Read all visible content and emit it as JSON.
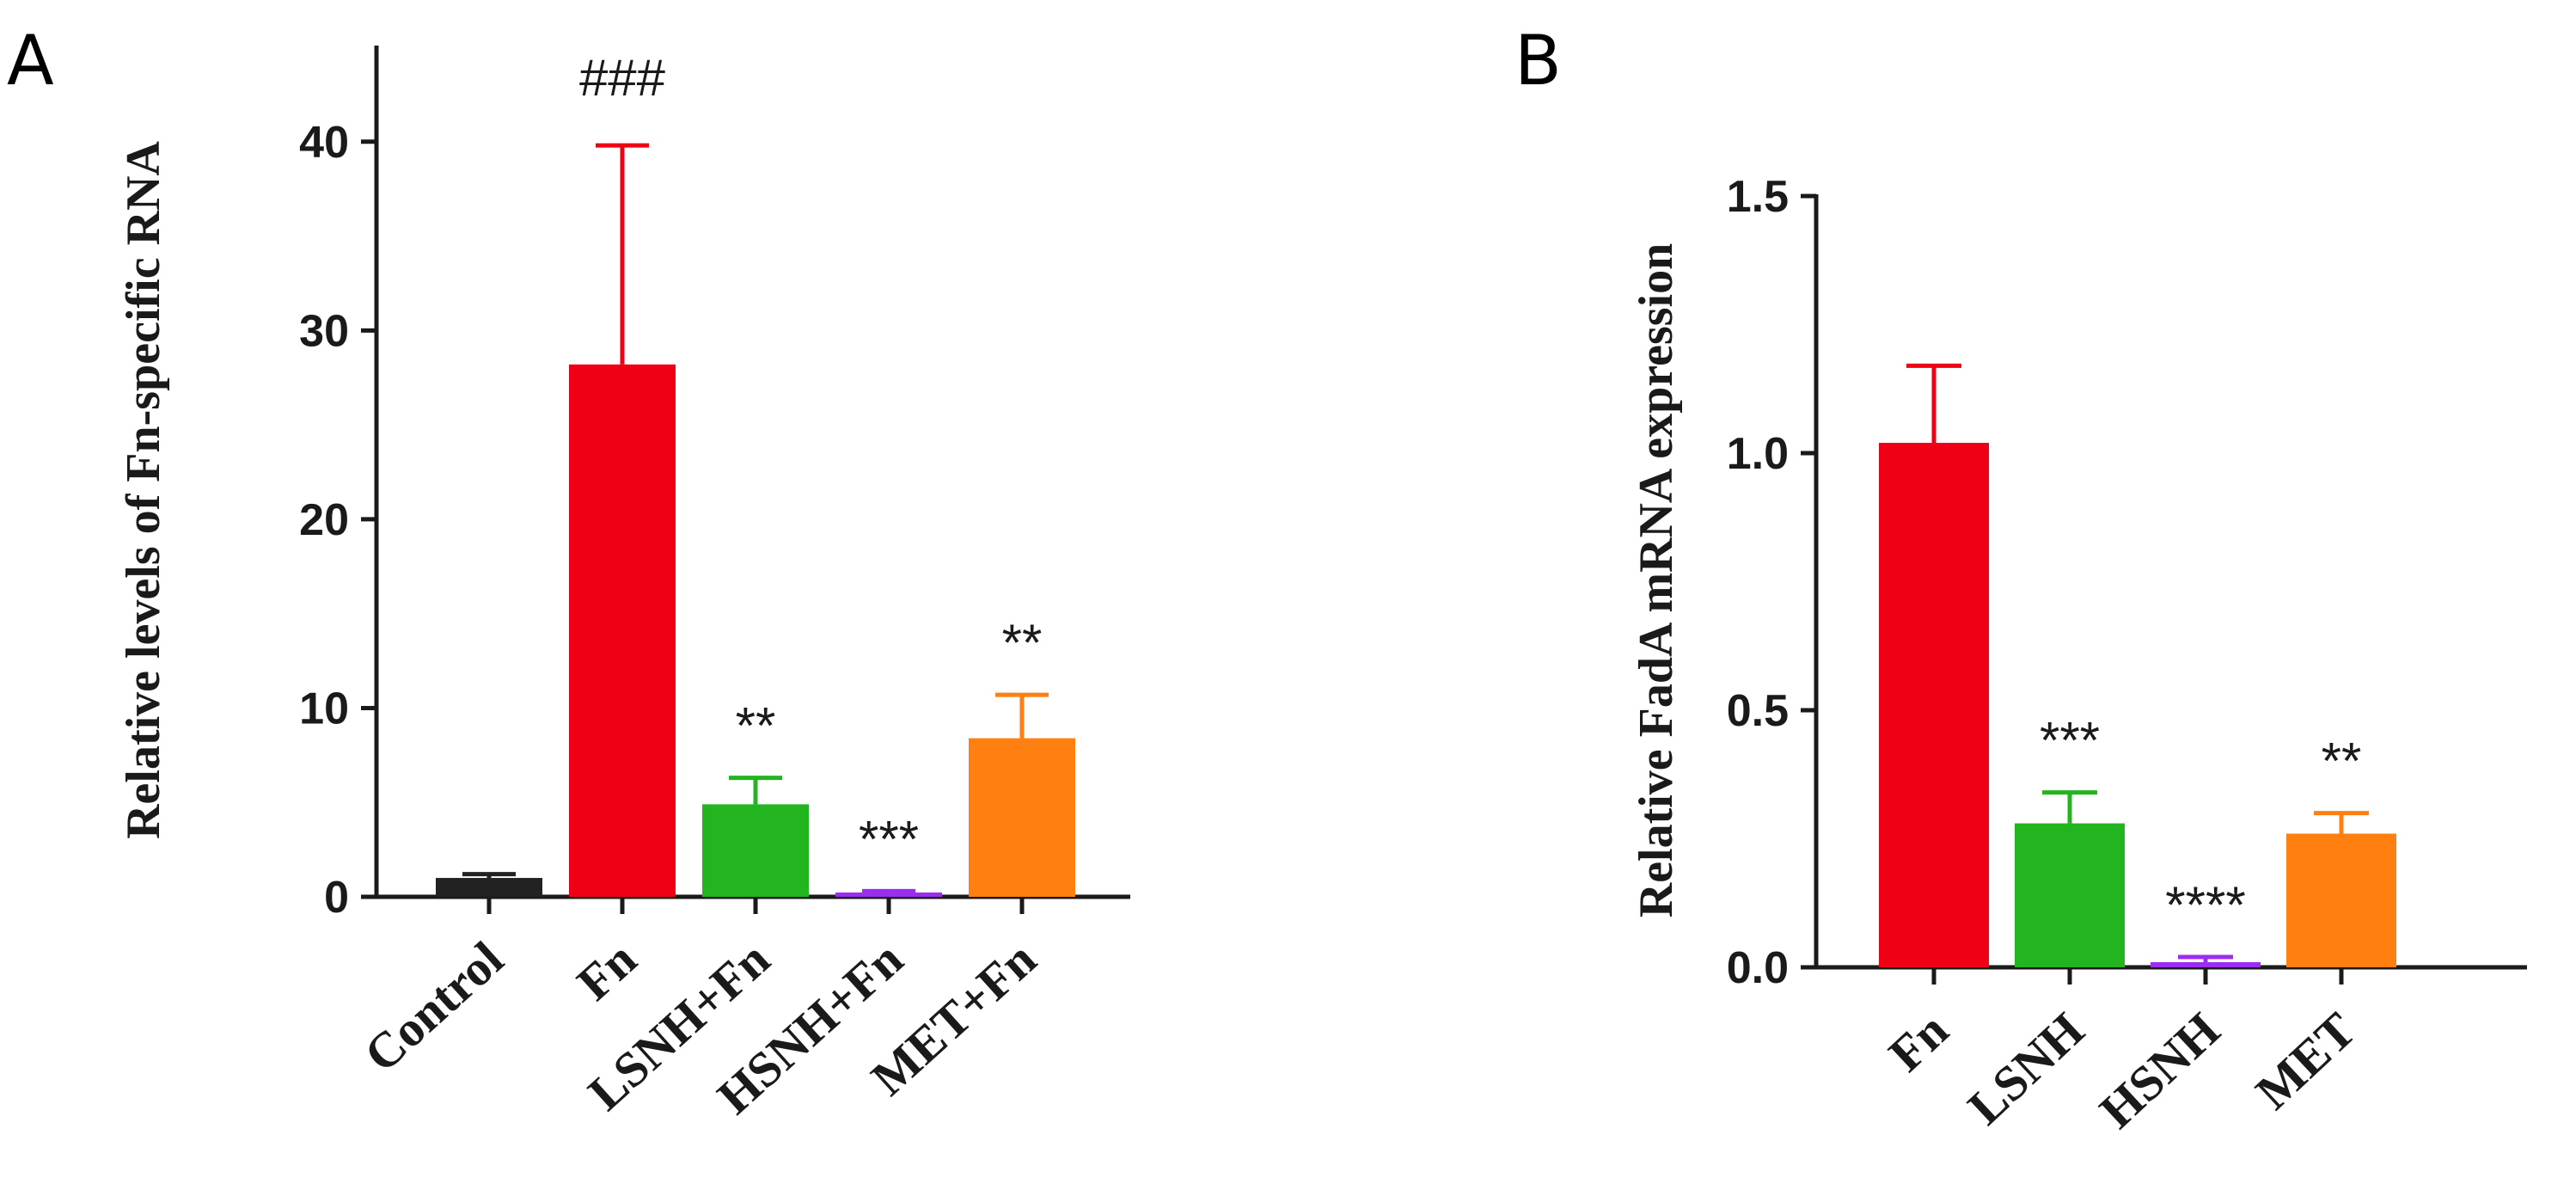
{
  "chart_data": [
    {
      "type": "bar",
      "panel": "A",
      "title": "",
      "xlabel": "",
      "ylabel": "Relative levels of Fn-specific RNA",
      "ylim": [
        0,
        45
      ],
      "yticks": [
        0,
        10,
        20,
        30,
        40
      ],
      "categories": [
        "Control",
        "Fn",
        "LSNH+Fn",
        "HSNH+Fn",
        "MET+Fn"
      ],
      "values": [
        1.0,
        28.2,
        4.9,
        0.2,
        8.4
      ],
      "errors": [
        0.2,
        11.6,
        1.4,
        0.1,
        2.3
      ],
      "colors": [
        "#222222",
        "#f00014",
        "#22b51f",
        "#9b2cf0",
        "#ff7f11"
      ],
      "annotations": [
        "",
        "###",
        "**",
        "***",
        "**"
      ]
    },
    {
      "type": "bar",
      "panel": "B",
      "title": "",
      "xlabel": "",
      "ylabel": "Relative FadA mRNA expression",
      "ylim": [
        0,
        1.5
      ],
      "yticks": [
        "0.0",
        "0.5",
        "1.0",
        "1.5"
      ],
      "categories": [
        "Fn",
        "LSNH",
        "HSNH",
        "MET"
      ],
      "values": [
        1.02,
        0.28,
        0.01,
        0.26
      ],
      "errors": [
        0.15,
        0.06,
        0.01,
        0.04
      ],
      "colors": [
        "#f00014",
        "#22b51f",
        "#9b2cf0",
        "#ff7f11"
      ],
      "annotations": [
        "",
        "***",
        "****",
        "**"
      ]
    }
  ]
}
